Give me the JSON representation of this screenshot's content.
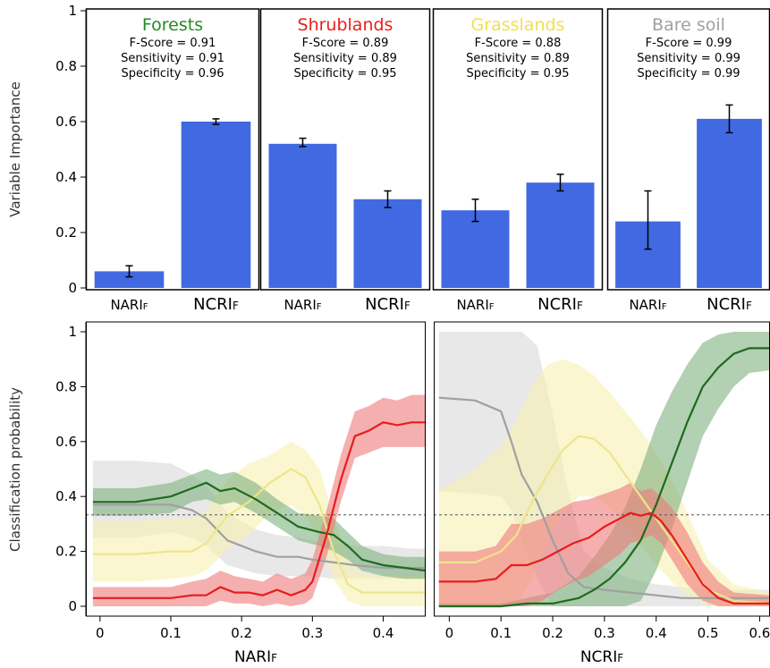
{
  "chart_data": [
    {
      "type": "bar",
      "ylabel": "Variable Importance",
      "ylim": [
        0,
        1
      ],
      "yticks": [
        "0",
        "0.2",
        "0.4",
        "0.6",
        "0.8",
        "1"
      ],
      "bar_color": "#4169e1",
      "panels": [
        {
          "title": "Forests",
          "title_color": "#228b22",
          "stats": [
            "F-Score = 0.91",
            "Sensitivity = 0.91",
            "Specificity = 0.96"
          ],
          "categories": [
            "NARIF",
            "NCRIF"
          ],
          "values": [
            0.06,
            0.6
          ],
          "err_low": [
            0.04,
            0.59
          ],
          "err_high": [
            0.08,
            0.61
          ]
        },
        {
          "title": "Shrublands",
          "title_color": "#e8201c",
          "stats": [
            "F-Score = 0.89",
            "Sensitivity = 0.89",
            "Specificity = 0.95"
          ],
          "categories": [
            "NARIF",
            "NCRIF"
          ],
          "values": [
            0.52,
            0.32
          ],
          "err_low": [
            0.51,
            0.29
          ],
          "err_high": [
            0.54,
            0.35
          ]
        },
        {
          "title": "Grasslands",
          "title_color": "#f0e050",
          "stats": [
            "F-Score = 0.88",
            "Sensitivity = 0.89",
            "Specificity = 0.95"
          ],
          "categories": [
            "NARIF",
            "NCRIF"
          ],
          "values": [
            0.28,
            0.38
          ],
          "err_low": [
            0.24,
            0.35
          ],
          "err_high": [
            0.32,
            0.41
          ]
        },
        {
          "title": "Bare soil",
          "title_color": "#a0a0a0",
          "stats": [
            "F-Score = 0.99",
            "Sensitivity = 0.99",
            "Specificity = 0.99"
          ],
          "categories": [
            "NARIF",
            "NCRIF"
          ],
          "values": [
            0.24,
            0.61
          ],
          "err_low": [
            0.14,
            0.56
          ],
          "err_high": [
            0.35,
            0.66
          ]
        }
      ]
    },
    {
      "type": "line",
      "ylabel": "Classification probability",
      "ylim": [
        0,
        1
      ],
      "yticks": [
        "0",
        "0.2",
        "0.4",
        "0.6",
        "0.8",
        "1"
      ],
      "reference_line": 0.333,
      "panels": [
        {
          "xlabel": "NARIF",
          "xlim": [
            -0.02,
            0.46
          ],
          "xticks": [
            0,
            0.1,
            0.2,
            0.3,
            0.4
          ],
          "xtick_labels": [
            "0",
            "0.1",
            "0.2",
            "0.3",
            "0.4"
          ],
          "series": [
            {
              "color": "#a0a0a0",
              "band_color": "#d9d9d9",
              "x": [
                -0.01,
                0.05,
                0.1,
                0.13,
                0.15,
                0.18,
                0.22,
                0.25,
                0.28,
                0.3,
                0.33,
                0.36,
                0.4,
                0.44,
                0.46
              ],
              "y": [
                0.37,
                0.37,
                0.37,
                0.35,
                0.32,
                0.24,
                0.2,
                0.18,
                0.18,
                0.17,
                0.16,
                0.15,
                0.14,
                0.14,
                0.14
              ],
              "lower": [
                0.25,
                0.25,
                0.27,
                0.25,
                0.22,
                0.15,
                0.12,
                0.11,
                0.11,
                0.11,
                0.1,
                0.1,
                0.1,
                0.1,
                0.1
              ],
              "upper": [
                0.53,
                0.53,
                0.52,
                0.48,
                0.44,
                0.34,
                0.28,
                0.26,
                0.25,
                0.24,
                0.23,
                0.22,
                0.22,
                0.21,
                0.21
              ]
            },
            {
              "color": "#ede58a",
              "band_color": "#f7f0b0",
              "x": [
                -0.01,
                0.05,
                0.1,
                0.13,
                0.15,
                0.18,
                0.21,
                0.24,
                0.27,
                0.29,
                0.31,
                0.33,
                0.35,
                0.37,
                0.4,
                0.44,
                0.46
              ],
              "y": [
                0.19,
                0.19,
                0.2,
                0.2,
                0.23,
                0.33,
                0.38,
                0.45,
                0.5,
                0.47,
                0.37,
                0.2,
                0.08,
                0.05,
                0.05,
                0.05,
                0.05
              ],
              "lower": [
                0.09,
                0.09,
                0.1,
                0.11,
                0.13,
                0.21,
                0.26,
                0.34,
                0.37,
                0.33,
                0.24,
                0.1,
                0.02,
                0.0,
                0.0,
                0.0,
                0.0
              ],
              "upper": [
                0.31,
                0.31,
                0.32,
                0.32,
                0.35,
                0.46,
                0.52,
                0.55,
                0.6,
                0.57,
                0.5,
                0.32,
                0.18,
                0.12,
                0.11,
                0.11,
                0.11
              ]
            },
            {
              "color": "#1e6b1e",
              "band_color": "#7fb07f",
              "x": [
                -0.01,
                0.05,
                0.1,
                0.13,
                0.15,
                0.17,
                0.19,
                0.22,
                0.25,
                0.28,
                0.31,
                0.33,
                0.35,
                0.37,
                0.4,
                0.43,
                0.46
              ],
              "y": [
                0.38,
                0.38,
                0.4,
                0.43,
                0.45,
                0.42,
                0.43,
                0.39,
                0.34,
                0.29,
                0.27,
                0.26,
                0.22,
                0.17,
                0.15,
                0.14,
                0.13
              ],
              "lower": [
                0.33,
                0.33,
                0.34,
                0.38,
                0.39,
                0.37,
                0.38,
                0.34,
                0.29,
                0.24,
                0.22,
                0.2,
                0.17,
                0.13,
                0.11,
                0.1,
                0.1
              ],
              "upper": [
                0.43,
                0.43,
                0.45,
                0.48,
                0.5,
                0.48,
                0.49,
                0.45,
                0.39,
                0.34,
                0.33,
                0.32,
                0.27,
                0.22,
                0.19,
                0.18,
                0.18
              ]
            },
            {
              "color": "#e81c1c",
              "band_color": "#f07a7a",
              "x": [
                -0.01,
                0.05,
                0.1,
                0.13,
                0.15,
                0.17,
                0.19,
                0.21,
                0.23,
                0.25,
                0.27,
                0.29,
                0.3,
                0.32,
                0.34,
                0.36,
                0.38,
                0.4,
                0.42,
                0.44,
                0.46
              ],
              "y": [
                0.03,
                0.03,
                0.03,
                0.04,
                0.04,
                0.07,
                0.05,
                0.05,
                0.04,
                0.06,
                0.04,
                0.06,
                0.09,
                0.26,
                0.46,
                0.62,
                0.64,
                0.67,
                0.66,
                0.67,
                0.67
              ],
              "lower": [
                0.0,
                0.0,
                0.0,
                0.0,
                0.0,
                0.02,
                0.01,
                0.01,
                0.0,
                0.01,
                0.0,
                0.01,
                0.03,
                0.18,
                0.38,
                0.54,
                0.56,
                0.58,
                0.58,
                0.58,
                0.58
              ],
              "upper": [
                0.07,
                0.07,
                0.07,
                0.09,
                0.1,
                0.13,
                0.11,
                0.1,
                0.09,
                0.12,
                0.1,
                0.12,
                0.17,
                0.35,
                0.55,
                0.71,
                0.73,
                0.76,
                0.75,
                0.77,
                0.77
              ]
            }
          ]
        },
        {
          "xlabel": "NCRIF",
          "xlim": [
            -0.03,
            0.62
          ],
          "xticks": [
            0,
            0.1,
            0.2,
            0.3,
            0.4,
            0.5,
            0.6
          ],
          "xtick_labels": [
            "0",
            "0.1",
            "0.2",
            "0.3",
            "0.4",
            "0.5",
            "0.6"
          ],
          "series": [
            {
              "color": "#a0a0a0",
              "band_color": "#d9d9d9",
              "x": [
                -0.02,
                0.05,
                0.1,
                0.12,
                0.14,
                0.17,
                0.2,
                0.23,
                0.26,
                0.3,
                0.35,
                0.4,
                0.45,
                0.5,
                0.55,
                0.62
              ],
              "y": [
                0.76,
                0.75,
                0.71,
                0.6,
                0.48,
                0.38,
                0.24,
                0.12,
                0.07,
                0.06,
                0.05,
                0.04,
                0.03,
                0.03,
                0.03,
                0.03
              ],
              "lower": [
                0.42,
                0.41,
                0.4,
                0.35,
                0.24,
                0.1,
                0.0,
                0.0,
                0.0,
                0.0,
                0.0,
                0.0,
                0.0,
                0.0,
                0.0,
                0.0
              ],
              "upper": [
                1.0,
                1.0,
                1.0,
                1.0,
                1.0,
                0.95,
                0.7,
                0.42,
                0.2,
                0.14,
                0.1,
                0.08,
                0.07,
                0.06,
                0.06,
                0.06
              ]
            },
            {
              "color": "#ede58a",
              "band_color": "#f7f0b0",
              "x": [
                -0.02,
                0.05,
                0.1,
                0.13,
                0.16,
                0.19,
                0.22,
                0.25,
                0.28,
                0.31,
                0.34,
                0.37,
                0.4,
                0.43,
                0.46,
                0.5,
                0.55,
                0.62
              ],
              "y": [
                0.16,
                0.16,
                0.2,
                0.26,
                0.38,
                0.48,
                0.57,
                0.62,
                0.61,
                0.56,
                0.48,
                0.4,
                0.32,
                0.24,
                0.16,
                0.06,
                0.02,
                0.01
              ],
              "lower": [
                0.0,
                0.0,
                0.0,
                0.0,
                0.1,
                0.24,
                0.34,
                0.4,
                0.4,
                0.36,
                0.3,
                0.22,
                0.15,
                0.09,
                0.04,
                0.0,
                0.0,
                0.0
              ],
              "upper": [
                0.42,
                0.5,
                0.58,
                0.68,
                0.8,
                0.88,
                0.9,
                0.88,
                0.84,
                0.78,
                0.71,
                0.64,
                0.56,
                0.46,
                0.34,
                0.17,
                0.08,
                0.05
              ]
            },
            {
              "color": "#1e6b1e",
              "band_color": "#7fb07f",
              "x": [
                -0.02,
                0.05,
                0.1,
                0.15,
                0.2,
                0.25,
                0.28,
                0.31,
                0.34,
                0.37,
                0.4,
                0.43,
                0.46,
                0.49,
                0.52,
                0.55,
                0.58,
                0.62
              ],
              "y": [
                0.0,
                0.0,
                0.0,
                0.01,
                0.01,
                0.03,
                0.06,
                0.1,
                0.16,
                0.24,
                0.37,
                0.52,
                0.67,
                0.8,
                0.87,
                0.92,
                0.94,
                0.94
              ],
              "lower": [
                0.0,
                0.0,
                0.0,
                0.0,
                0.0,
                0.0,
                0.0,
                0.0,
                0.0,
                0.02,
                0.13,
                0.28,
                0.45,
                0.62,
                0.72,
                0.8,
                0.85,
                0.86
              ],
              "upper": [
                0.01,
                0.01,
                0.01,
                0.03,
                0.05,
                0.11,
                0.18,
                0.26,
                0.36,
                0.5,
                0.66,
                0.78,
                0.88,
                0.96,
                0.99,
                1.0,
                1.0,
                1.0
              ]
            },
            {
              "color": "#e81c1c",
              "band_color": "#f07a7a",
              "x": [
                -0.02,
                0.05,
                0.09,
                0.12,
                0.15,
                0.18,
                0.21,
                0.24,
                0.27,
                0.3,
                0.33,
                0.35,
                0.37,
                0.39,
                0.41,
                0.43,
                0.46,
                0.49,
                0.52,
                0.55,
                0.62
              ],
              "y": [
                0.09,
                0.09,
                0.1,
                0.15,
                0.15,
                0.17,
                0.2,
                0.23,
                0.25,
                0.29,
                0.32,
                0.34,
                0.33,
                0.34,
                0.31,
                0.26,
                0.17,
                0.08,
                0.03,
                0.01,
                0.01
              ],
              "lower": [
                0.0,
                0.0,
                0.0,
                0.0,
                0.0,
                0.02,
                0.06,
                0.09,
                0.11,
                0.15,
                0.19,
                0.23,
                0.24,
                0.26,
                0.23,
                0.17,
                0.08,
                0.02,
                0.0,
                0.0,
                0.0
              ],
              "upper": [
                0.2,
                0.2,
                0.22,
                0.3,
                0.3,
                0.32,
                0.35,
                0.38,
                0.39,
                0.41,
                0.43,
                0.45,
                0.42,
                0.43,
                0.4,
                0.36,
                0.27,
                0.16,
                0.09,
                0.05,
                0.04
              ]
            }
          ]
        }
      ]
    }
  ]
}
